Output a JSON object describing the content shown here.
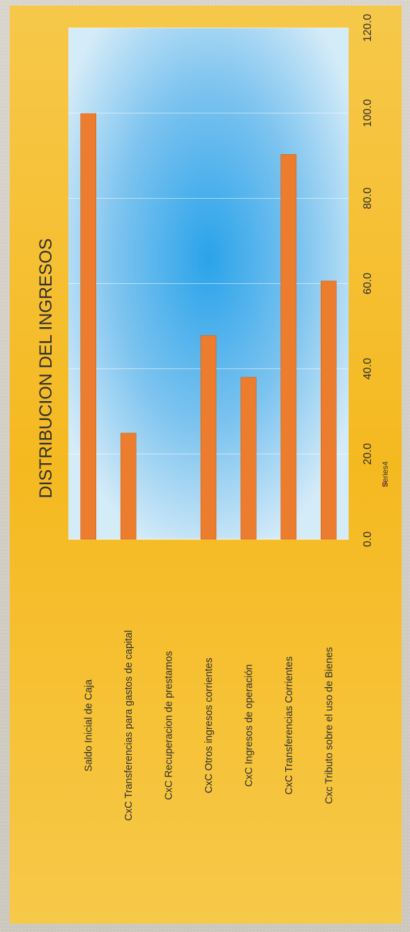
{
  "chart_data": {
    "type": "bar",
    "orientation": "horizontal",
    "title": "DISTRIBUCION DEL INGRESOS",
    "categories": [
      "Saldo Inicial de Caja",
      "CxC Transferencias para gastos de capital",
      "CxC Recuperacion de prestamos",
      "CxC Otros ingresos corrientes",
      "CxC Ingresos de operación",
      "CxC Transferencias Corrientes",
      "Cxc Tributo sobre el uso de Bienes"
    ],
    "series": [
      {
        "name": "Series4",
        "values": [
          99.9,
          24.9,
          0,
          47.8,
          38.0,
          90.3,
          60.6
        ]
      }
    ],
    "xlim": [
      0,
      120
    ],
    "ticks": [
      "0.0",
      "20.0",
      "40.0",
      "60.0",
      "80.0",
      "100.0",
      "120.0"
    ],
    "tick_values": [
      0,
      20,
      40,
      60,
      80,
      100,
      120
    ],
    "grid": true,
    "legend_position": "bottom",
    "colors": {
      "bar": "#ec7d2f",
      "bar_edge": "#c85f16",
      "outer_bg": "#f7c132",
      "plot_bg_center": "#2fa8ec",
      "plot_bg_edge": "#c6e3f6",
      "text": "#2f2f2f"
    }
  }
}
